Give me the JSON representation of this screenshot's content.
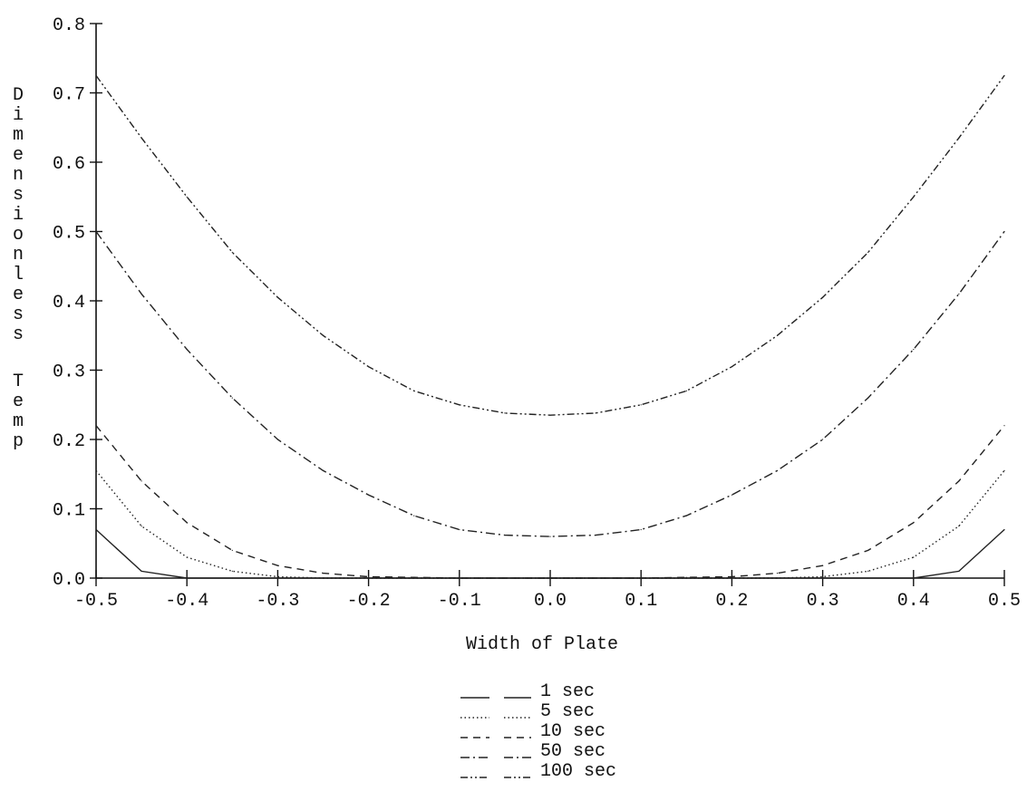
{
  "chart_data": {
    "type": "line",
    "title": "",
    "xlabel": "Width of Plate",
    "ylabel": "Dimensionless Temp",
    "xlim": [
      -0.5,
      0.5
    ],
    "ylim": [
      0.0,
      0.8
    ],
    "x_ticks": [
      "-0.5",
      "-0.4",
      "-0.3",
      "-0.2",
      "-0.1",
      "0.0",
      "0.1",
      "0.2",
      "0.3",
      "0.4",
      "0.5"
    ],
    "y_ticks": [
      "0.0",
      "0.1",
      "0.2",
      "0.3",
      "0.4",
      "0.5",
      "0.6",
      "0.7",
      "0.8"
    ],
    "grid": false,
    "legend_position": "bottom-center",
    "x": [
      -0.5,
      -0.45,
      -0.4,
      -0.35,
      -0.3,
      -0.25,
      -0.2,
      -0.15,
      -0.1,
      -0.05,
      0.0,
      0.05,
      0.1,
      0.15,
      0.2,
      0.25,
      0.3,
      0.35,
      0.4,
      0.45,
      0.5
    ],
    "series": [
      {
        "name": "1 sec",
        "dash": "solid",
        "values": [
          0.07,
          0.01,
          0.0,
          0.0,
          0.0,
          0.0,
          0.0,
          0.0,
          0.0,
          0.0,
          0.0,
          0.0,
          0.0,
          0.0,
          0.0,
          0.0,
          0.0,
          0.0,
          0.0,
          0.01,
          0.07
        ]
      },
      {
        "name": "5 sec",
        "dash": "dotted",
        "values": [
          0.155,
          0.075,
          0.03,
          0.01,
          0.002,
          0.0,
          0.0,
          0.0,
          0.0,
          0.0,
          0.0,
          0.0,
          0.0,
          0.0,
          0.0,
          0.0,
          0.002,
          0.01,
          0.03,
          0.075,
          0.155
        ]
      },
      {
        "name": "10 sec",
        "dash": "dashed",
        "values": [
          0.22,
          0.14,
          0.08,
          0.04,
          0.018,
          0.007,
          0.002,
          0.001,
          0.0,
          0.0,
          0.0,
          0.0,
          0.0,
          0.001,
          0.002,
          0.007,
          0.018,
          0.04,
          0.08,
          0.14,
          0.22
        ]
      },
      {
        "name": "50 sec",
        "dash": "dashdot",
        "values": [
          0.5,
          0.41,
          0.33,
          0.26,
          0.2,
          0.155,
          0.12,
          0.09,
          0.07,
          0.062,
          0.06,
          0.062,
          0.07,
          0.09,
          0.12,
          0.155,
          0.2,
          0.26,
          0.33,
          0.41,
          0.5
        ]
      },
      {
        "name": "100 sec",
        "dash": "dashdotdot",
        "values": [
          0.725,
          0.635,
          0.55,
          0.47,
          0.405,
          0.35,
          0.305,
          0.27,
          0.25,
          0.238,
          0.235,
          0.238,
          0.25,
          0.27,
          0.305,
          0.35,
          0.405,
          0.47,
          0.55,
          0.635,
          0.725
        ]
      }
    ]
  }
}
